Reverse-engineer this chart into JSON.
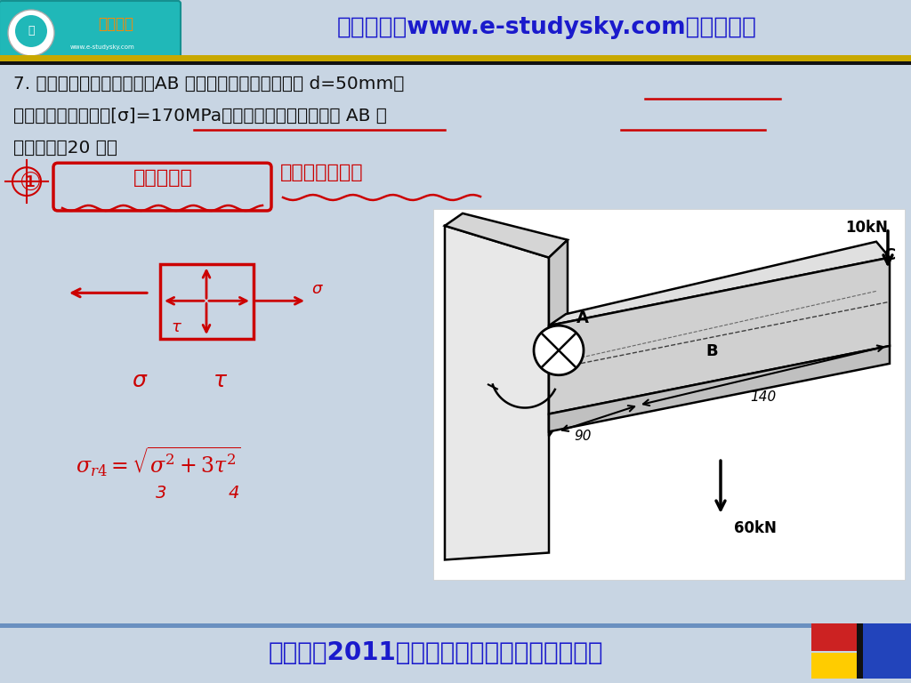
{
  "bg_color": "#c8d5e3",
  "header_text": "网学天地（www.e-studysky.com）版权所有",
  "header_text_color": "#1a1acc",
  "footer_text": "武汉大学2011年《材料力学》考研真题与详解",
  "footer_text_color": "#1a1acc",
  "q_line1": "7. 直角拐受力如题图所示，AB 段为实心圆截面，其直径 d=50mm，",
  "q_line2": "已知材料的许用应力[σ]=170MPa，试按第四强度理论校核 AB 杆",
  "q_line3": "的强度。（20 分）",
  "red": "#cc0000",
  "black": "#111111",
  "white": "#ffffff",
  "logo_teal": "#20b8b8",
  "logo_orange": "#ff8800",
  "gold": "#c8a800",
  "blue_corner": "#2244bb",
  "fig_w": 10.24,
  "fig_h": 7.68,
  "dpi": 100
}
